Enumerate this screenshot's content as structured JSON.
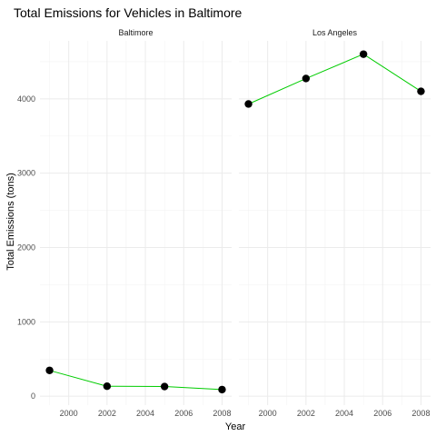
{
  "chart_data": {
    "type": "line",
    "title": "Total Emissions for Vehicles in Baltimore",
    "xlabel": "Year",
    "ylabel": "Total Emissions (tons)",
    "xlim": [
      1998.5,
      2008.5
    ],
    "ylim": [
      -120,
      4780
    ],
    "x_ticks": [
      2000,
      2002,
      2004,
      2006,
      2008
    ],
    "x_minor_ticks": [
      1999,
      2001,
      2003,
      2005,
      2007
    ],
    "y_ticks": [
      0,
      1000,
      2000,
      3000,
      4000
    ],
    "y_minor_ticks": [
      500,
      1500,
      2500,
      3500,
      4500
    ],
    "grid": true,
    "line_color": "#00cc00",
    "point_color": "#000000",
    "panels": [
      {
        "name": "Baltimore",
        "x": [
          1999,
          2002,
          2005,
          2008
        ],
        "y": [
          347,
          134,
          130,
          89
        ]
      },
      {
        "name": "Los Angeles",
        "x": [
          1999,
          2002,
          2005,
          2008
        ],
        "y": [
          3931,
          4274,
          4601,
          4101
        ]
      }
    ]
  }
}
